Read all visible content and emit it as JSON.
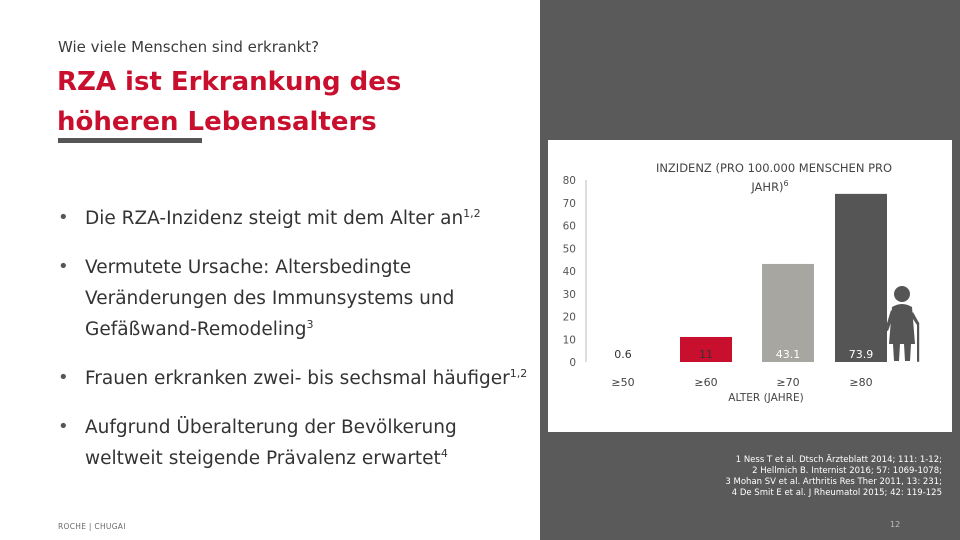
{
  "kicker": "Wie viele Menschen sind erkrankt?",
  "headline": "RZA ist Erkrankung des höheren Lebensalters",
  "bullets": [
    {
      "text": "Die RZA-Inzidenz steigt mit dem Alter an",
      "sup": "1,2"
    },
    {
      "text": "Vermutete Ursache: Altersbedingte Veränderungen des Immunsystems und Gefäßwand-Remodeling",
      "sup": "3"
    },
    {
      "text": "Frauen erkranken zwei- bis sechsmal häufiger",
      "sup": "1,2"
    },
    {
      "text": "Aufgrund Überalterung der Bevölkerung weltweit steigende Prävalenz erwartet",
      "sup": "4"
    }
  ],
  "footer": "ROCHE | CHUGAI",
  "references": [
    "1 Ness T et al. Dtsch Ärzteblatt 2014; 111: 1-12;",
    "2 Hellmich B. Internist 2016; 57: 1069-1078;",
    "3 Mohan SV et al. Arthritis Res Ther 2011, 13: 231;",
    "4 De Smit E et al. J Rheumatol 2015; 42: 119-125"
  ],
  "page_number": "12",
  "colors": {
    "accent": "#c8102e",
    "panel_dark": "#5a5a5a",
    "bar_light": "#ffffff",
    "bar_red": "#c8102e",
    "bar_gray": "#a8a6a1",
    "bar_dark": "#555555"
  },
  "icons": [
    "elderly-woman-with-cane-icon"
  ],
  "chart_data": {
    "type": "bar",
    "title_lines": [
      "INZIDENZ (PRO 100.000 MENSCHEN PRO",
      "JAHR)"
    ],
    "title_sup": "6",
    "categories": [
      "≥50",
      "≥60",
      "≥70",
      "≥80"
    ],
    "values": [
      0.6,
      11,
      43.1,
      73.9
    ],
    "value_labels": [
      "0.6",
      "11",
      "43.1",
      "73.9"
    ],
    "xlabel": "ALTER (JAHRE)",
    "ylabel": "",
    "ylim": [
      0,
      80
    ],
    "yticks": [
      "0",
      "10",
      "20",
      "30",
      "40",
      "50",
      "60",
      "70",
      "80"
    ],
    "bar_colors": [
      "#ffffff",
      "#c8102e",
      "#a8a6a1",
      "#555555"
    ],
    "grid": false,
    "legend": "none"
  }
}
